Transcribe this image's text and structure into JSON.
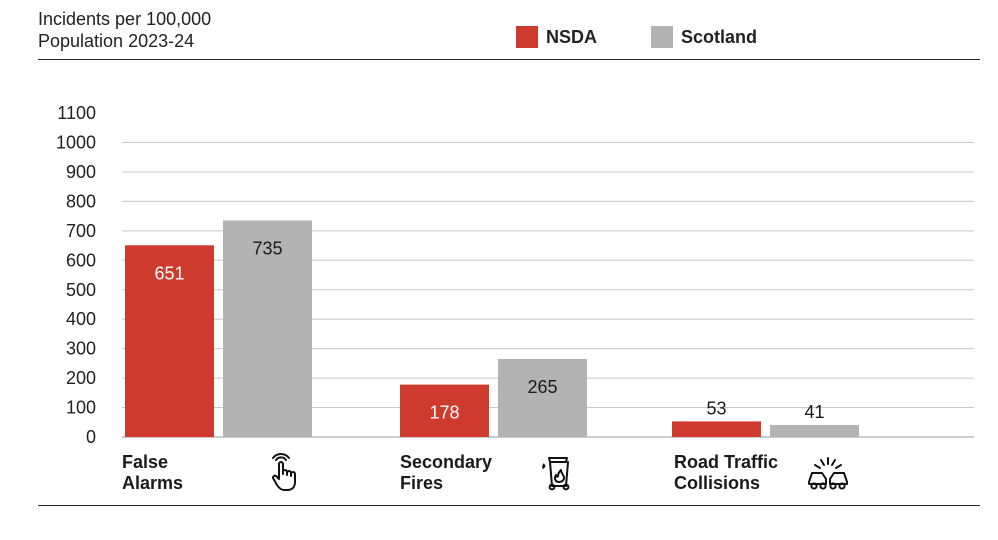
{
  "title": {
    "line1": "Incidents per 100,000",
    "line2": "Population 2023-24"
  },
  "legend": [
    {
      "name": "NSDA",
      "color": "#cf3a2e"
    },
    {
      "name": "Scotland",
      "color": "#b3b3b3"
    }
  ],
  "chart_data": {
    "type": "bar",
    "title": "Incidents per 100,000 Population 2023-24",
    "xlabel": "",
    "ylabel": "",
    "ylim": [
      0,
      1100
    ],
    "yticks": [
      "1100",
      "1000",
      "900",
      "800",
      "700",
      "600",
      "500",
      "400",
      "300",
      "200",
      "100",
      "0"
    ],
    "grid": true,
    "legend_position": "top-right",
    "categories": [
      {
        "line1": "False",
        "line2": "Alarms",
        "icon": "pointing-hand-icon"
      },
      {
        "line1": "Secondary",
        "line2": "Fires",
        "icon": "burning-bin-icon"
      },
      {
        "line1": "Road Traffic",
        "line2": "Collisions",
        "icon": "car-collision-icon"
      }
    ],
    "series": [
      {
        "name": "NSDA",
        "color": "#cf3a2e",
        "values": [
          651,
          178,
          53
        ],
        "labels": [
          "651",
          "178",
          "53"
        ]
      },
      {
        "name": "Scotland",
        "color": "#b3b3b3",
        "values": [
          735,
          265,
          41
        ],
        "labels": [
          "735",
          "265",
          "41"
        ]
      }
    ]
  }
}
